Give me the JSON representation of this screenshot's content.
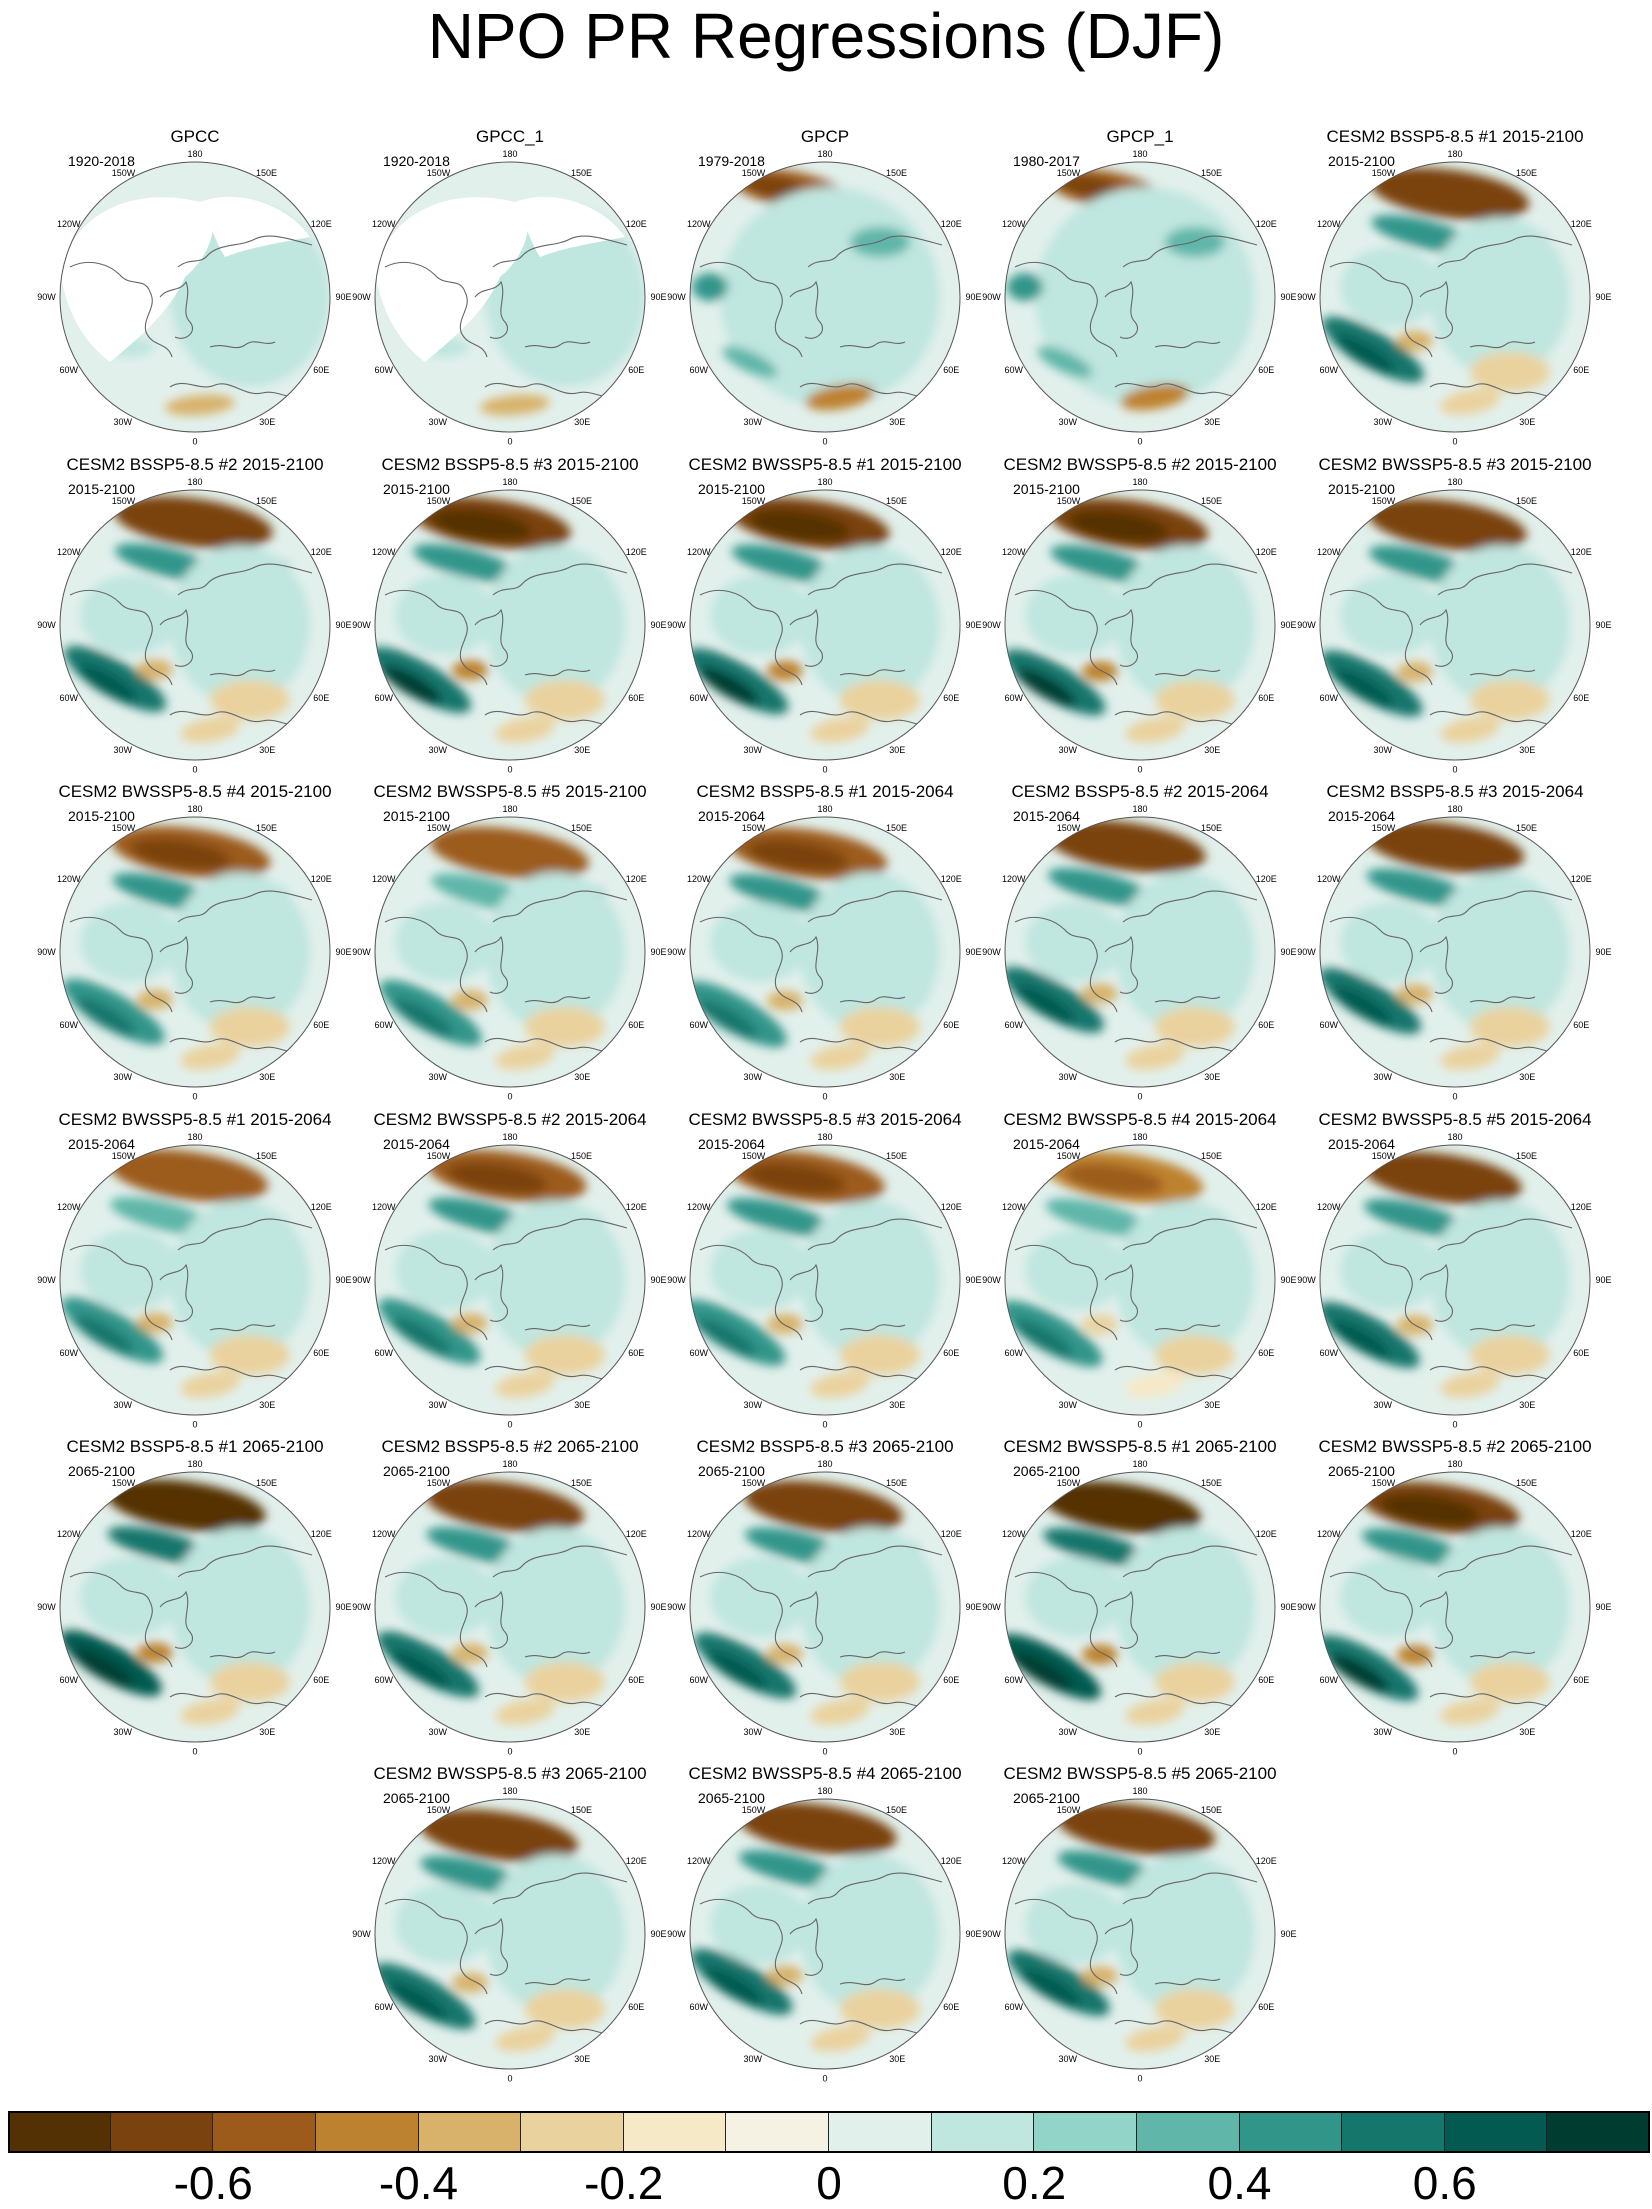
{
  "title": "NPO PR Regressions (DJF)",
  "map_labels": {
    "lon_top": "180",
    "lon_bottom": "0",
    "lon_150w": "150W",
    "lon_150e": "150E",
    "lon_120w": "120W",
    "lon_120e": "120E",
    "lon_90w": "90W",
    "lon_90e": "90E",
    "lon_60w": "60W",
    "lon_60e": "60E",
    "lon_30w": "30W",
    "lon_30e": "30E"
  },
  "panels": [
    {
      "title": "GPCC",
      "period": "1920-2018",
      "strength": 0.15,
      "obs": true,
      "missing": true
    },
    {
      "title": "GPCC_1",
      "period": "1920-2018",
      "strength": 0.15,
      "obs": true,
      "missing": true
    },
    {
      "title": "GPCP",
      "period": "1979-2018",
      "strength": 0.45,
      "obs": true,
      "missing": false
    },
    {
      "title": "GPCP_1",
      "period": "1980-2017",
      "strength": 0.45,
      "obs": true,
      "missing": false
    },
    {
      "title": "CESM2 BSSP5-8.5 #1 2015-2100",
      "period": "2015-2100",
      "strength": 0.85,
      "obs": false,
      "missing": false
    },
    {
      "title": "CESM2 BSSP5-8.5 #2 2015-2100",
      "period": "2015-2100",
      "strength": 0.85,
      "obs": false,
      "missing": false
    },
    {
      "title": "CESM2 BSSP5-8.5 #3 2015-2100",
      "period": "2015-2100",
      "strength": 0.9,
      "obs": false,
      "missing": false
    },
    {
      "title": "CESM2 BWSSP5-8.5 #1 2015-2100",
      "period": "2015-2100",
      "strength": 0.9,
      "obs": false,
      "missing": false
    },
    {
      "title": "CESM2 BWSSP5-8.5 #2 2015-2100",
      "period": "2015-2100",
      "strength": 0.9,
      "obs": false,
      "missing": false
    },
    {
      "title": "CESM2 BWSSP5-8.5 #3 2015-2100",
      "period": "2015-2100",
      "strength": 0.85,
      "obs": false,
      "missing": false
    },
    {
      "title": "CESM2 BWSSP5-8.5 #4 2015-2100",
      "period": "2015-2100",
      "strength": 0.75,
      "obs": false,
      "missing": false
    },
    {
      "title": "CESM2 BWSSP5-8.5 #5 2015-2100",
      "period": "2015-2100",
      "strength": 0.7,
      "obs": false,
      "missing": false
    },
    {
      "title": "CESM2 BSSP5-8.5 #1 2015-2064",
      "period": "2015-2064",
      "strength": 0.75,
      "obs": false,
      "missing": false
    },
    {
      "title": "CESM2 BSSP5-8.5 #2 2015-2064",
      "period": "2015-2064",
      "strength": 0.8,
      "obs": false,
      "missing": false
    },
    {
      "title": "CESM2 BSSP5-8.5 #3 2015-2064",
      "period": "2015-2064",
      "strength": 0.8,
      "obs": false,
      "missing": false
    },
    {
      "title": "CESM2 BWSSP5-8.5 #1 2015-2064",
      "period": "2015-2064",
      "strength": 0.7,
      "obs": false,
      "missing": false
    },
    {
      "title": "CESM2 BWSSP5-8.5 #2 2015-2064",
      "period": "2015-2064",
      "strength": 0.75,
      "obs": false,
      "missing": false
    },
    {
      "title": "CESM2 BWSSP5-8.5 #3 2015-2064",
      "period": "2015-2064",
      "strength": 0.75,
      "obs": false,
      "missing": false
    },
    {
      "title": "CESM2 BWSSP5-8.5 #4 2015-2064",
      "period": "2015-2064",
      "strength": 0.65,
      "obs": false,
      "missing": false
    },
    {
      "title": "CESM2 BWSSP5-8.5 #5 2015-2064",
      "period": "2015-2064",
      "strength": 0.8,
      "obs": false,
      "missing": false
    },
    {
      "title": "CESM2 BSSP5-8.5 #1 2065-2100",
      "period": "2065-2100",
      "strength": 0.95,
      "obs": false,
      "missing": false
    },
    {
      "title": "CESM2 BSSP5-8.5 #2 2065-2100",
      "period": "2065-2100",
      "strength": 0.8,
      "obs": false,
      "missing": false
    },
    {
      "title": "CESM2 BSSP5-8.5 #3 2065-2100",
      "period": "2065-2100",
      "strength": 0.85,
      "obs": false,
      "missing": false
    },
    {
      "title": "CESM2 BWSSP5-8.5 #1 2065-2100",
      "period": "2065-2100",
      "strength": 0.95,
      "obs": false,
      "missing": false
    },
    {
      "title": "CESM2 BWSSP5-8.5 #2 2065-2100",
      "period": "2065-2100",
      "strength": 0.9,
      "obs": false,
      "missing": false
    },
    {
      "title": "CESM2 BWSSP5-8.5 #3 2065-2100",
      "period": "2065-2100",
      "strength": 0.8,
      "obs": false,
      "missing": false
    },
    {
      "title": "CESM2 BWSSP5-8.5 #4 2065-2100",
      "period": "2065-2100",
      "strength": 0.8,
      "obs": false,
      "missing": false
    },
    {
      "title": "CESM2 BWSSP5-8.5 #5 2065-2100",
      "period": "2065-2100",
      "strength": 0.8,
      "obs": false,
      "missing": false
    }
  ],
  "colorbar": {
    "colors": [
      "#543005",
      "#7a420e",
      "#9c5b1b",
      "#bd822f",
      "#d8b26a",
      "#ead29e",
      "#f5e9c8",
      "#f5f2e4",
      "#e2f0ec",
      "#bfe6df",
      "#92d4c8",
      "#5fb6a9",
      "#31958a",
      "#15766c",
      "#035a50",
      "#003c30"
    ],
    "labels": [
      "-0.6",
      "-0.4",
      "-0.2",
      "0",
      "0.2",
      "0.4",
      "0.6"
    ],
    "label_values": [
      -0.6,
      -0.4,
      -0.2,
      0,
      0.2,
      0.4,
      0.6
    ],
    "min": -0.8,
    "max": 0.8
  }
}
